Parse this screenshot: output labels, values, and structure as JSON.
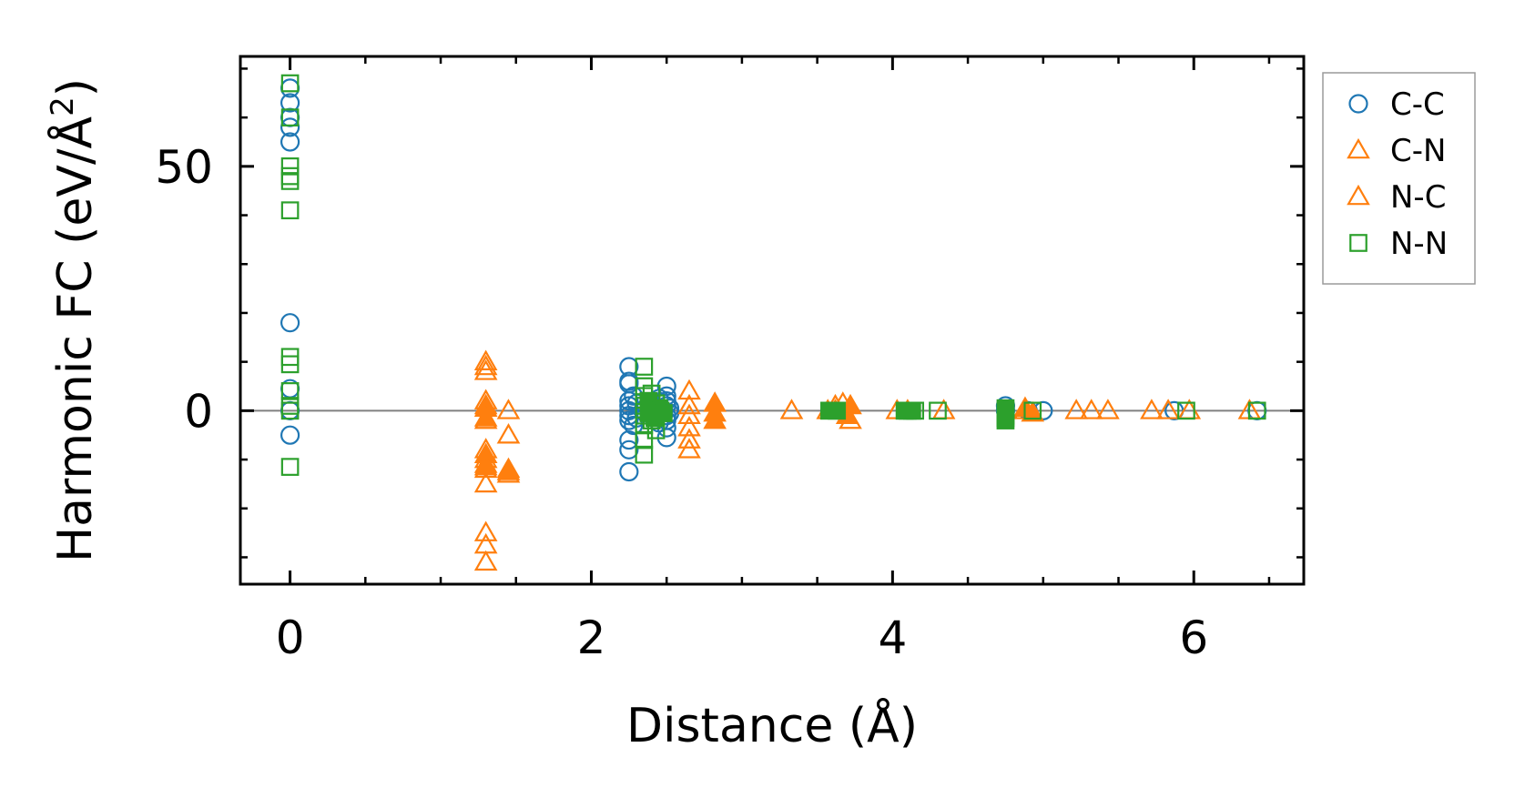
{
  "chart_data": {
    "type": "scatter",
    "xlabel": "Distance (Å)",
    "ylabel_main": "Harmonic FC (eV/Å",
    "ylabel_sup": "2",
    "ylabel_close": ")",
    "xlim": [
      -0.33,
      6.73
    ],
    "ylim": [
      -35.5,
      72.5
    ],
    "x_ticks": [
      0,
      2,
      4,
      6
    ],
    "x_tick_labels": [
      "0",
      "2",
      "4",
      "6"
    ],
    "x_minor_ticks": [
      0.5,
      1,
      1.5,
      2.5,
      3,
      3.5,
      4.5,
      5,
      5.5,
      6.5
    ],
    "y_ticks": [
      0,
      50
    ],
    "y_tick_labels": [
      "0",
      "50"
    ],
    "y_minor_ticks": [
      -30,
      -20,
      -10,
      10,
      20,
      30,
      40,
      60,
      70
    ],
    "zero_line": true,
    "grid": false,
    "legend_position": "outside-right",
    "series": [
      {
        "name": "C-C",
        "marker": "circle",
        "color": "#1f77b4",
        "filled": false,
        "points": [
          [
            0,
            66
          ],
          [
            0,
            63
          ],
          [
            0,
            60
          ],
          [
            0,
            58
          ],
          [
            0,
            55
          ],
          [
            0,
            18
          ],
          [
            0,
            4.5
          ],
          [
            0,
            0
          ],
          [
            0,
            -5
          ],
          [
            2.25,
            9
          ],
          [
            2.25,
            6
          ],
          [
            2.25,
            5.5
          ],
          [
            2.25,
            2
          ],
          [
            2.25,
            1
          ],
          [
            2.25,
            0
          ],
          [
            2.25,
            -1
          ],
          [
            2.25,
            -2
          ],
          [
            2.25,
            -6
          ],
          [
            2.25,
            -8
          ],
          [
            2.25,
            -12.5
          ],
          [
            2.28,
            3
          ],
          [
            2.28,
            -3
          ],
          [
            2.3,
            1.5
          ],
          [
            2.3,
            -1.5
          ],
          [
            2.5,
            5
          ],
          [
            2.5,
            3
          ],
          [
            2.5,
            2
          ],
          [
            2.5,
            1
          ],
          [
            2.5,
            -1
          ],
          [
            2.5,
            -2
          ],
          [
            2.5,
            -3.5
          ],
          [
            2.5,
            -5.5
          ],
          [
            2.52,
            0.5
          ],
          [
            2.52,
            -0.5
          ],
          [
            2.45,
            2.5
          ],
          [
            2.45,
            -2.5
          ],
          [
            4.75,
            1
          ],
          [
            4.75,
            0
          ],
          [
            4.9,
            0
          ],
          [
            5.0,
            0
          ],
          [
            5.87,
            0
          ],
          [
            6.42,
            0
          ]
        ]
      },
      {
        "name": "C-N",
        "marker": "triangle",
        "color": "#ff7f0e",
        "filled": false,
        "points": [
          [
            1.3,
            10
          ],
          [
            1.3,
            9
          ],
          [
            1.3,
            8
          ],
          [
            1.3,
            2
          ],
          [
            1.3,
            1
          ],
          [
            1.3,
            -2
          ],
          [
            1.3,
            -8
          ],
          [
            1.3,
            -10
          ],
          [
            1.3,
            -11
          ],
          [
            1.3,
            -12
          ],
          [
            1.3,
            -15
          ],
          [
            1.3,
            -25
          ],
          [
            1.3,
            -27.5
          ],
          [
            1.3,
            -31
          ],
          [
            1.45,
            -12
          ],
          [
            1.45,
            -13
          ],
          [
            1.45,
            -5
          ],
          [
            1.45,
            0
          ],
          [
            2.65,
            4
          ],
          [
            2.65,
            1
          ],
          [
            2.65,
            -1
          ],
          [
            2.65,
            -3.5
          ],
          [
            2.65,
            -6
          ],
          [
            2.65,
            -8
          ],
          [
            3.33,
            0
          ],
          [
            3.57,
            0
          ],
          [
            3.62,
            1
          ],
          [
            3.67,
            1.5
          ],
          [
            3.72,
            -2
          ],
          [
            4.03,
            0
          ],
          [
            4.34,
            0
          ],
          [
            4.88,
            0
          ],
          [
            5.22,
            0
          ],
          [
            5.32,
            0
          ],
          [
            5.43,
            0
          ],
          [
            5.72,
            0
          ],
          [
            5.83,
            0
          ],
          [
            5.97,
            0
          ],
          [
            6.37,
            0
          ]
        ]
      },
      {
        "name": "N-C",
        "marker": "triangle",
        "color": "#ff7f0e",
        "filled": true,
        "points": [
          [
            1.3,
            0.5
          ],
          [
            1.3,
            -1.5
          ],
          [
            1.3,
            -9
          ],
          [
            1.3,
            -11.5
          ],
          [
            1.45,
            -12.5
          ],
          [
            2.82,
            1.5
          ],
          [
            2.82,
            -0.5
          ],
          [
            2.82,
            -2
          ],
          [
            3.62,
            0
          ],
          [
            3.7,
            -1
          ],
          [
            3.72,
            1
          ],
          [
            4.1,
            0
          ],
          [
            4.88,
            0.5
          ],
          [
            4.93,
            -0.5
          ]
        ]
      },
      {
        "name": "N-N",
        "marker": "square",
        "color": "#2ca02c",
        "filled": false,
        "points": [
          [
            0,
            67
          ],
          [
            0,
            60
          ],
          [
            0,
            50
          ],
          [
            0,
            48
          ],
          [
            0,
            47
          ],
          [
            0,
            41
          ],
          [
            0,
            11
          ],
          [
            0,
            9.5
          ],
          [
            0,
            4
          ],
          [
            0,
            1
          ],
          [
            0,
            0
          ],
          [
            0,
            -11.5
          ],
          [
            2.35,
            9
          ],
          [
            2.35,
            5
          ],
          [
            2.35,
            3
          ],
          [
            2.35,
            1
          ],
          [
            2.35,
            -1
          ],
          [
            2.35,
            -3
          ],
          [
            2.35,
            -6
          ],
          [
            2.35,
            -9
          ],
          [
            2.4,
            3.5
          ],
          [
            2.4,
            -2
          ],
          [
            2.43,
            1.5
          ],
          [
            2.43,
            -4
          ],
          [
            2.46,
            0
          ],
          [
            4.1,
            0
          ],
          [
            4.15,
            0
          ],
          [
            4.3,
            0
          ],
          [
            4.75,
            0
          ],
          [
            4.75,
            -1
          ],
          [
            4.93,
            0
          ],
          [
            5.95,
            0
          ],
          [
            6.42,
            0
          ]
        ]
      },
      {
        "name": "",
        "marker": "square",
        "color": "#2ca02c",
        "filled": true,
        "points": [
          [
            2.38,
            2
          ],
          [
            2.38,
            -0.5
          ],
          [
            2.42,
            -1.5
          ],
          [
            2.45,
            0.5
          ],
          [
            2.48,
            -0.5
          ],
          [
            3.58,
            0
          ],
          [
            3.63,
            0
          ],
          [
            4.08,
            0
          ],
          [
            4.13,
            0
          ],
          [
            4.75,
            0.5
          ],
          [
            4.75,
            -1.5
          ],
          [
            4.75,
            -2
          ]
        ]
      }
    ]
  }
}
